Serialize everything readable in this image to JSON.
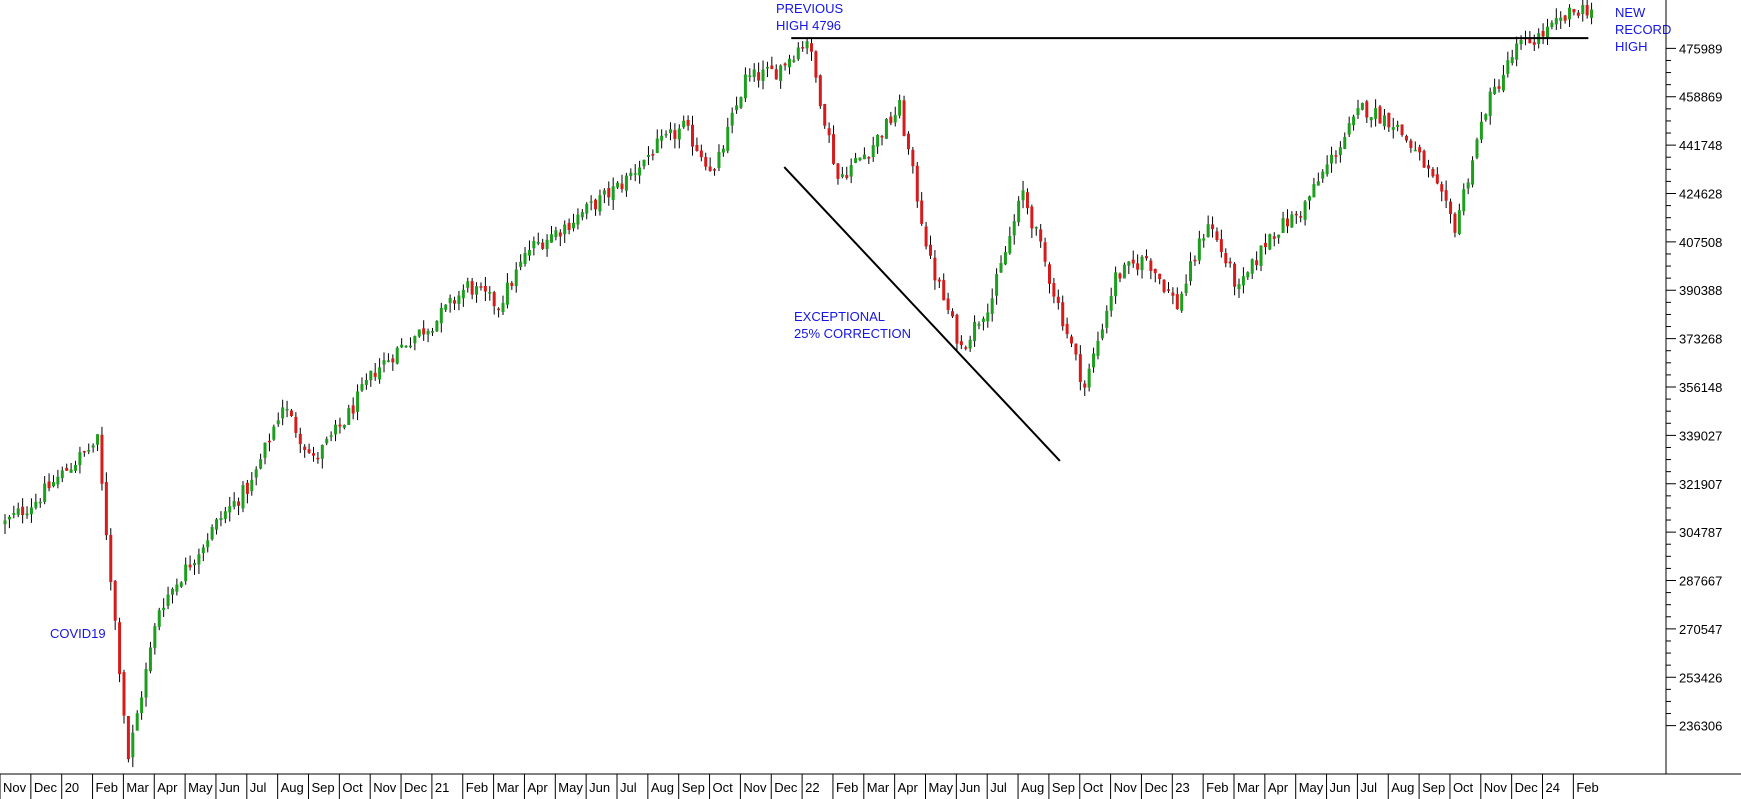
{
  "chart_data": {
    "type": "candlestick",
    "y_axis": {
      "position": "right",
      "ticks": [
        236306,
        253426,
        270547,
        287667,
        304787,
        321907,
        339027,
        356148,
        373268,
        390388,
        407508,
        424628,
        441748,
        458869,
        475989
      ],
      "range": [
        219186,
        493109
      ]
    },
    "x_axis": {
      "position": "bottom",
      "month_labels": [
        "Nov",
        "Dec",
        "20",
        "Feb",
        "Mar",
        "Apr",
        "May",
        "Jun",
        "Jul",
        "Aug",
        "Sep",
        "Oct",
        "Nov",
        "Dec",
        "21",
        "Feb",
        "Mar",
        "Apr",
        "May",
        "Jun",
        "Jul",
        "Aug",
        "Sep",
        "Oct",
        "Nov",
        "Dec",
        "22",
        "Feb",
        "Mar",
        "Apr",
        "May",
        "Jun",
        "Jul",
        "Aug",
        "Sep",
        "Oct",
        "Nov",
        "Dec",
        "23",
        "Feb",
        "Mar",
        "Apr",
        "May",
        "Jun",
        "Jul",
        "Aug",
        "Sep",
        "Oct",
        "Nov",
        "Dec",
        "24",
        "Feb"
      ]
    },
    "price_path": {
      "points": [
        [
          "Nov 2019",
          308000
        ],
        [
          "Dec 2019",
          316000
        ],
        [
          "Jan 2020",
          327000
        ],
        [
          "Feb 2020",
          337000
        ],
        [
          "Mar 2020",
          225000
        ],
        [
          "Apr 2020",
          278000
        ],
        [
          "May 2020",
          294000
        ],
        [
          "Jun 2020",
          310000
        ],
        [
          "Jul 2020",
          322000
        ],
        [
          "Aug 2020",
          350000
        ],
        [
          "Sep 2020",
          330000
        ],
        [
          "Oct 2020",
          344000
        ],
        [
          "Nov 2020",
          362000
        ],
        [
          "Dec 2020",
          372000
        ],
        [
          "Jan 2021",
          380000
        ],
        [
          "Feb 2021",
          392000
        ],
        [
          "Mar 2021",
          385000
        ],
        [
          "Apr 2021",
          405000
        ],
        [
          "May 2021",
          412000
        ],
        [
          "Jun 2021",
          420000
        ],
        [
          "Jul 2021",
          428000
        ],
        [
          "Aug 2021",
          440000
        ],
        [
          "Sep 2021",
          448000
        ],
        [
          "Oct 2021",
          432000
        ],
        [
          "Nov 2021",
          465000
        ],
        [
          "Dec 2021",
          468000
        ],
        [
          "Jan 2022",
          479600
        ],
        [
          "Feb 2022",
          430000
        ],
        [
          "Mar 2022",
          440000
        ],
        [
          "Apr 2022",
          455000
        ],
        [
          "May 2022",
          400000
        ],
        [
          "Jun 2022",
          370000
        ],
        [
          "Jul 2022",
          388000
        ],
        [
          "Aug 2022",
          425000
        ],
        [
          "Sep 2022",
          390000
        ],
        [
          "Oct 2022",
          356000
        ],
        [
          "Nov 2022",
          395000
        ],
        [
          "Dec 2022",
          402000
        ],
        [
          "Jan 2023",
          385000
        ],
        [
          "Feb 2023",
          415000
        ],
        [
          "Mar 2023",
          390000
        ],
        [
          "Apr 2023",
          410000
        ],
        [
          "May 2023",
          418000
        ],
        [
          "Jun 2023",
          437000
        ],
        [
          "Jul 2023",
          455000
        ],
        [
          "Aug 2023",
          450000
        ],
        [
          "Sep 2023",
          435000
        ],
        [
          "Oct 2023",
          413000
        ],
        [
          "Nov 2023",
          455000
        ],
        [
          "Dec 2023",
          476000
        ],
        [
          "Jan 2024",
          482000
        ],
        [
          "Feb 2024",
          490000
        ]
      ]
    },
    "reference_lines": [
      {
        "name": "previous-high-line",
        "type": "horizontal",
        "value": 479600,
        "from": "Dec 2021",
        "to": "Feb 2024"
      },
      {
        "name": "correction-trendline",
        "type": "diagonal",
        "from": [
          "Dec 2021",
          434000
        ],
        "to": [
          "Sep 2022",
          330000
        ]
      }
    ],
    "annotations": [
      {
        "name": "previous-high",
        "lines": [
          "PREVIOUS",
          "HIGH 4796"
        ]
      },
      {
        "name": "new-record-high",
        "lines": [
          "NEW",
          "RECORD",
          "HIGH"
        ]
      },
      {
        "name": "exceptional-correction",
        "lines": [
          "EXCEPTIONAL",
          "25% CORRECTION"
        ]
      },
      {
        "name": "covid19",
        "lines": [
          "COVID19"
        ]
      }
    ],
    "colors": {
      "up": "#1e9e1e",
      "down": "#d41c1c",
      "wick": "#000000",
      "annotation": "#1515e6",
      "axis": "#000000",
      "background": "#ffffff"
    },
    "grid": false
  }
}
